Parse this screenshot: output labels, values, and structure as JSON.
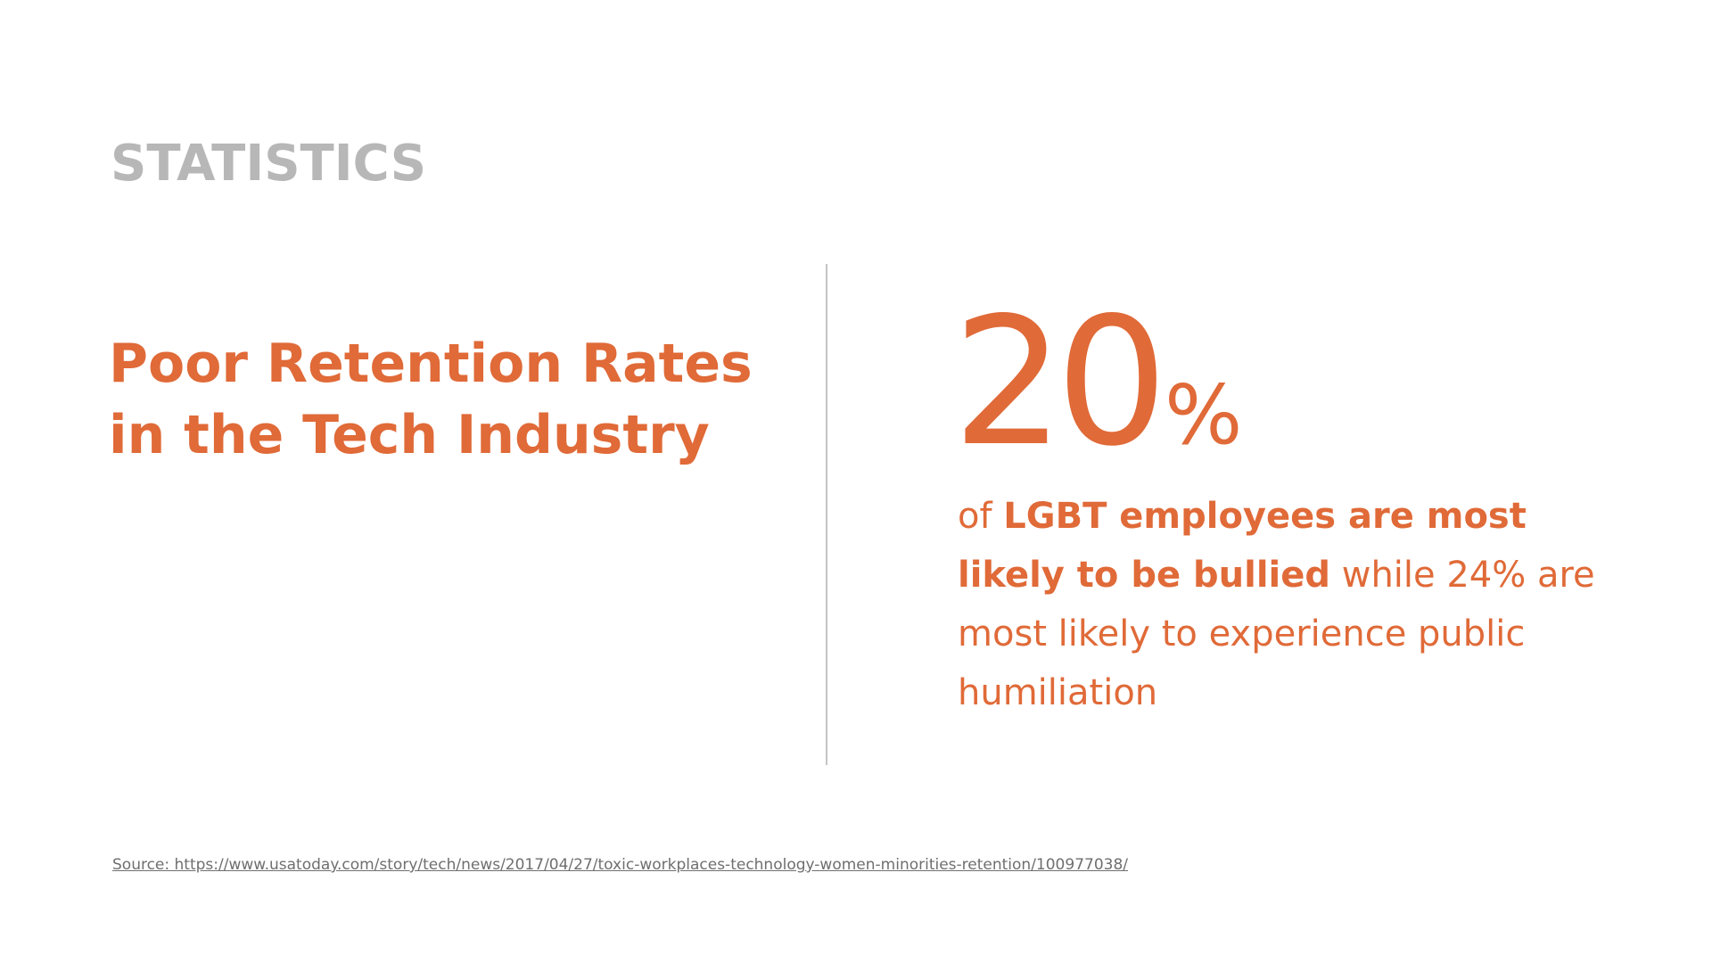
{
  "section_label": "STATISTICS",
  "headline": {
    "line1": "Poor Retention Rates",
    "line2": "in the Tech Industry"
  },
  "stat": {
    "number": "20",
    "unit": "%"
  },
  "description": {
    "part1": "of ",
    "bold1": "LGBT employees are most likely to be bullied",
    "part2": " while 24% are most likely to experience public humiliation"
  },
  "source": {
    "text": "Source: https://www.usatoday.com/story/tech/news/2017/04/27/toxic-workplaces-technology-women-minorities-retention/100977038/"
  },
  "colors": {
    "accent": "#e06a38",
    "label_gray": "#b7b7b7",
    "divider": "#c4c4c4",
    "source_text": "#6f6f6f"
  }
}
